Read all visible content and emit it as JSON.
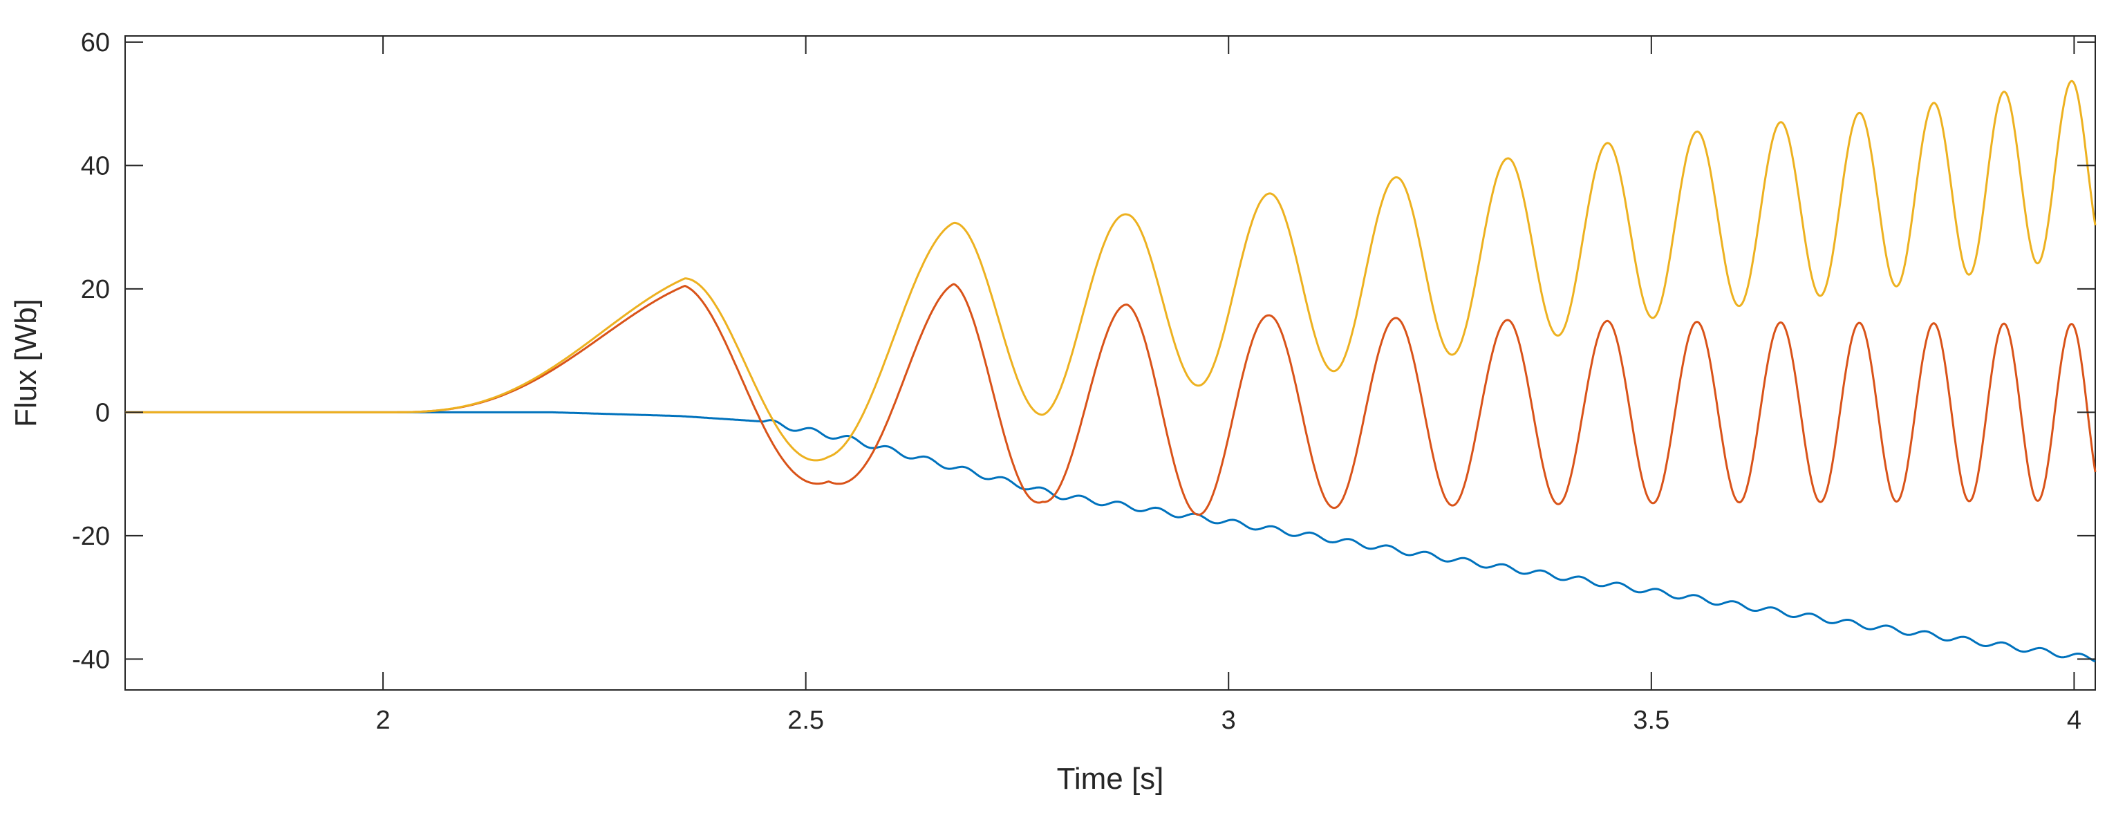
{
  "chart_data": {
    "type": "line",
    "title": "",
    "xlabel": "Time [s]",
    "ylabel": "Flux [Wb]",
    "xlim": [
      1.695,
      4.025
    ],
    "ylim": [
      -45,
      61
    ],
    "xticks": [
      2,
      2.5,
      3,
      3.5,
      4
    ],
    "xtick_labels": [
      "2",
      "2.5",
      "3",
      "3.5",
      "4"
    ],
    "yticks": [
      60,
      40,
      20,
      0,
      -20,
      -40
    ],
    "ytick_labels": [
      "60",
      "40",
      "20",
      "0",
      "-20",
      "-40"
    ],
    "grid": false,
    "legend": "none",
    "series": [
      {
        "color": "#0072BD",
        "model": "drift",
        "start": 2.0,
        "x": [
          1.695,
          2.0,
          2.2,
          2.35,
          2.45,
          2.55,
          2.65,
          2.8,
          3.0,
          3.25,
          3.5,
          3.75,
          4.025
        ],
        "y": [
          0,
          0,
          0,
          -0.6,
          -1.5,
          -4.3,
          -8.0,
          -13.5,
          -17.8,
          -23.5,
          -29.0,
          -34.5,
          -40.0
        ],
        "ripple_amplitude": 0.5
      },
      {
        "color": "#D95319",
        "model": "chirp",
        "start": 2.0,
        "envelope_x": [
          2.0,
          2.357,
          2.527,
          2.675,
          2.78,
          2.88,
          3.05,
          3.3,
          3.6,
          4.025
        ],
        "envelope_amp": [
          0,
          20.5,
          11.2,
          20.8,
          14.5,
          17.5,
          15.7,
          15.0,
          14.6,
          14.3
        ],
        "offset_x": [
          2.0,
          4.025
        ],
        "offset_y": [
          0,
          0
        ],
        "extrema_x": [
          2.0,
          2.357,
          2.527,
          2.675,
          2.78,
          2.878,
          2.965,
          3.048,
          3.125,
          3.198,
          3.265,
          3.33,
          3.39,
          3.448,
          3.502,
          3.554,
          3.604,
          3.653,
          3.7,
          3.746,
          3.79,
          3.834,
          3.876,
          3.917,
          3.957,
          3.997,
          4.035
        ]
      },
      {
        "color": "#EDB120",
        "model": "chirp",
        "start": 2.0,
        "envelope_x": [
          2.0,
          2.357,
          2.527,
          2.675,
          2.78,
          2.88,
          3.05,
          3.3,
          3.6,
          4.025
        ],
        "envelope_amp": [
          0,
          21.0,
          14.2,
          15.7,
          16.0,
          14.5,
          15.0,
          15.2,
          14.5,
          14.3
        ],
        "offset_x": [
          2.0,
          2.357,
          2.527,
          2.675,
          2.78,
          2.9,
          3.2,
          3.5,
          3.8,
          4.025
        ],
        "offset_y": [
          0,
          0.7,
          7.0,
          15.0,
          15.6,
          18.0,
          23.0,
          30.0,
          35.0,
          40.0
        ],
        "extrema_x": [
          2.0,
          2.357,
          2.527,
          2.675,
          2.78,
          2.878,
          2.965,
          3.048,
          3.125,
          3.198,
          3.265,
          3.33,
          3.39,
          3.448,
          3.502,
          3.554,
          3.604,
          3.653,
          3.7,
          3.746,
          3.79,
          3.834,
          3.876,
          3.917,
          3.957,
          3.997,
          4.035
        ]
      }
    ]
  }
}
